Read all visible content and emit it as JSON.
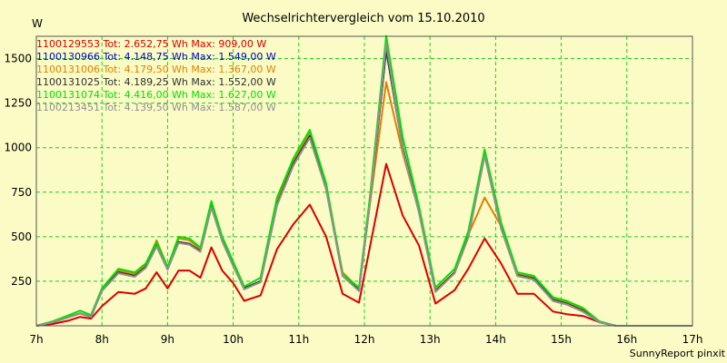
{
  "chart_data": {
    "type": "line",
    "title": "Wechselrichtervergleich vom 15.10.2010",
    "ylabel": "W",
    "xlabel": "",
    "ylim": [
      0,
      1625
    ],
    "xlim": [
      7,
      17
    ],
    "yticks": [
      250,
      500,
      750,
      1000,
      1250,
      1500
    ],
    "xticks": [
      7,
      8,
      9,
      10,
      11,
      12,
      13,
      14,
      15,
      16,
      17
    ],
    "xtick_labels": [
      "7h",
      "8h",
      "9h",
      "10h",
      "11h",
      "12h",
      "13h",
      "14h",
      "15h",
      "16h",
      "17h"
    ],
    "grid": true,
    "legend_position": "top-left",
    "x": [
      7.0,
      7.25,
      7.5,
      7.667,
      7.833,
      8.0,
      8.25,
      8.5,
      8.667,
      8.833,
      9.0,
      9.167,
      9.333,
      9.5,
      9.667,
      9.833,
      10.0,
      10.167,
      10.417,
      10.667,
      10.917,
      11.167,
      11.417,
      11.667,
      11.917,
      12.083,
      12.333,
      12.583,
      12.833,
      13.083,
      13.375,
      13.583,
      13.833,
      14.083,
      14.333,
      14.583,
      14.875,
      15.083,
      15.333,
      15.583,
      15.833,
      16.083,
      16.333,
      16.583,
      16.833,
      17.0
    ],
    "series": [
      {
        "name": "1100129553",
        "label": "1100129553 Tot: 2.652,75 Wh Max: 909,00 W",
        "color": "#d80000",
        "values": [
          0,
          10,
          30,
          50,
          40,
          110,
          190,
          180,
          210,
          300,
          210,
          310,
          310,
          270,
          440,
          310,
          240,
          140,
          170,
          430,
          570,
          680,
          500,
          180,
          130,
          440,
          909,
          620,
          450,
          125,
          200,
          320,
          490,
          350,
          180,
          180,
          80,
          65,
          55,
          20,
          0,
          0,
          0,
          0,
          0,
          0
        ]
      },
      {
        "name": "1100130966",
        "label": "1100130966 Tot: 4.148,75 Wh Max: 1.549,00 W",
        "color": "#0000cc",
        "values": [
          0,
          20,
          50,
          70,
          50,
          200,
          300,
          280,
          330,
          450,
          320,
          470,
          460,
          420,
          670,
          480,
          340,
          210,
          250,
          680,
          900,
          1060,
          770,
          280,
          200,
          690,
          1549,
          1000,
          640,
          195,
          300,
          500,
          960,
          550,
          280,
          260,
          140,
          120,
          80,
          20,
          0,
          0,
          0,
          0,
          0,
          0
        ]
      },
      {
        "name": "1100131006",
        "label": "1100131006 Tot: 4.179,50 Wh Max: 1.367,00 W",
        "color": "#e08000",
        "values": [
          0,
          20,
          50,
          70,
          50,
          200,
          310,
          290,
          340,
          480,
          330,
          490,
          480,
          430,
          690,
          490,
          350,
          210,
          250,
          700,
          920,
          1080,
          780,
          300,
          210,
          680,
          1367,
          970,
          640,
          200,
          300,
          510,
          720,
          560,
          290,
          270,
          150,
          130,
          90,
          20,
          0,
          0,
          0,
          0,
          0,
          0
        ]
      },
      {
        "name": "1100131025",
        "label": "1100131025 Tot: 4.189,25 Wh Max: 1.552,00 W",
        "color": "#303030",
        "values": [
          0,
          20,
          50,
          70,
          50,
          200,
          300,
          280,
          330,
          450,
          320,
          470,
          460,
          420,
          670,
          480,
          340,
          210,
          250,
          680,
          910,
          1065,
          775,
          285,
          200,
          690,
          1552,
          1000,
          640,
          195,
          300,
          500,
          965,
          555,
          285,
          265,
          145,
          125,
          85,
          20,
          0,
          0,
          0,
          0,
          0,
          0
        ]
      },
      {
        "name": "1100131074",
        "label": "1100131074 Tot: 4.416,00 Wh Max: 1.627,00 W",
        "color": "#00e000",
        "values": [
          0,
          25,
          60,
          85,
          60,
          210,
          320,
          300,
          350,
          470,
          330,
          500,
          490,
          440,
          700,
          500,
          360,
          220,
          270,
          720,
          940,
          1100,
          800,
          290,
          215,
          720,
          1627,
          1060,
          670,
          215,
          320,
          530,
          990,
          580,
          300,
          280,
          160,
          140,
          100,
          25,
          0,
          0,
          0,
          0,
          0,
          0
        ]
      },
      {
        "name": "1100213451",
        "label": "1100213451 Tot: 4.139,50 Wh Max: 1.587,00 W",
        "color": "#909090",
        "values": [
          0,
          20,
          50,
          70,
          50,
          195,
          295,
          275,
          325,
          445,
          315,
          465,
          455,
          415,
          665,
          475,
          335,
          205,
          245,
          675,
          900,
          1055,
          765,
          280,
          195,
          685,
          1587,
          990,
          635,
          190,
          295,
          495,
          955,
          545,
          280,
          260,
          140,
          120,
          80,
          20,
          0,
          0,
          0,
          0,
          0,
          0
        ]
      }
    ]
  },
  "footer": {
    "credit": "SunnyReport pinxit"
  }
}
